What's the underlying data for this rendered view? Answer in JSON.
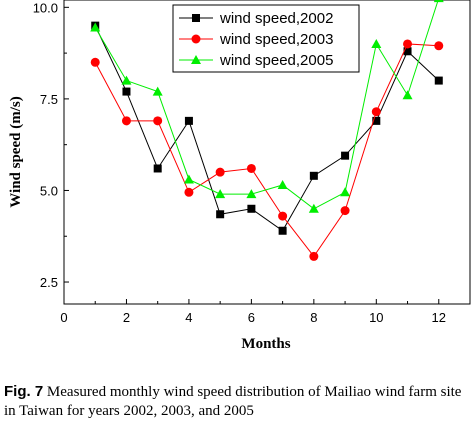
{
  "chart_data": {
    "type": "line",
    "xlabel": "Months",
    "ylabel": "Wind speed (m/s)",
    "xlim": [
      0,
      13
    ],
    "ylim": [
      1.9,
      10.2
    ],
    "x_ticks": [
      "0",
      "2",
      "4",
      "6",
      "8",
      "10",
      "12"
    ],
    "x_tick_values": [
      0,
      2,
      4,
      6,
      8,
      10,
      12
    ],
    "y_ticks": [
      "2.5",
      "5.0",
      "7.5",
      "10.0"
    ],
    "y_tick_values": [
      2.5,
      5.0,
      7.5,
      10.0
    ],
    "legend_position": "top-right",
    "x": [
      1,
      2,
      3,
      4,
      5,
      6,
      7,
      8,
      9,
      10,
      11,
      12
    ],
    "series": [
      {
        "name": "wind speed,2002",
        "color": "#000000",
        "marker": "square",
        "values": [
          9.5,
          7.7,
          5.6,
          6.9,
          4.35,
          4.5,
          3.9,
          5.4,
          5.95,
          6.9,
          8.8,
          8.0
        ]
      },
      {
        "name": "wind speed,2003",
        "color": "#ff0000",
        "marker": "circle",
        "values": [
          8.5,
          6.9,
          6.9,
          4.95,
          5.5,
          5.6,
          4.3,
          3.2,
          4.45,
          7.15,
          9.0,
          8.95
        ]
      },
      {
        "name": "wind speed,2005",
        "color": "#00ee00",
        "marker": "triangle",
        "values": [
          9.45,
          8.0,
          7.7,
          5.3,
          4.9,
          4.9,
          5.15,
          4.5,
          4.95,
          9.0,
          7.6,
          10.25
        ]
      }
    ]
  },
  "caption": {
    "label": "Fig. 7",
    "text": "Measured monthly wind speed distribution of Mailiao wind farm site in Taiwan for years 2002, 2003, and 2005"
  }
}
